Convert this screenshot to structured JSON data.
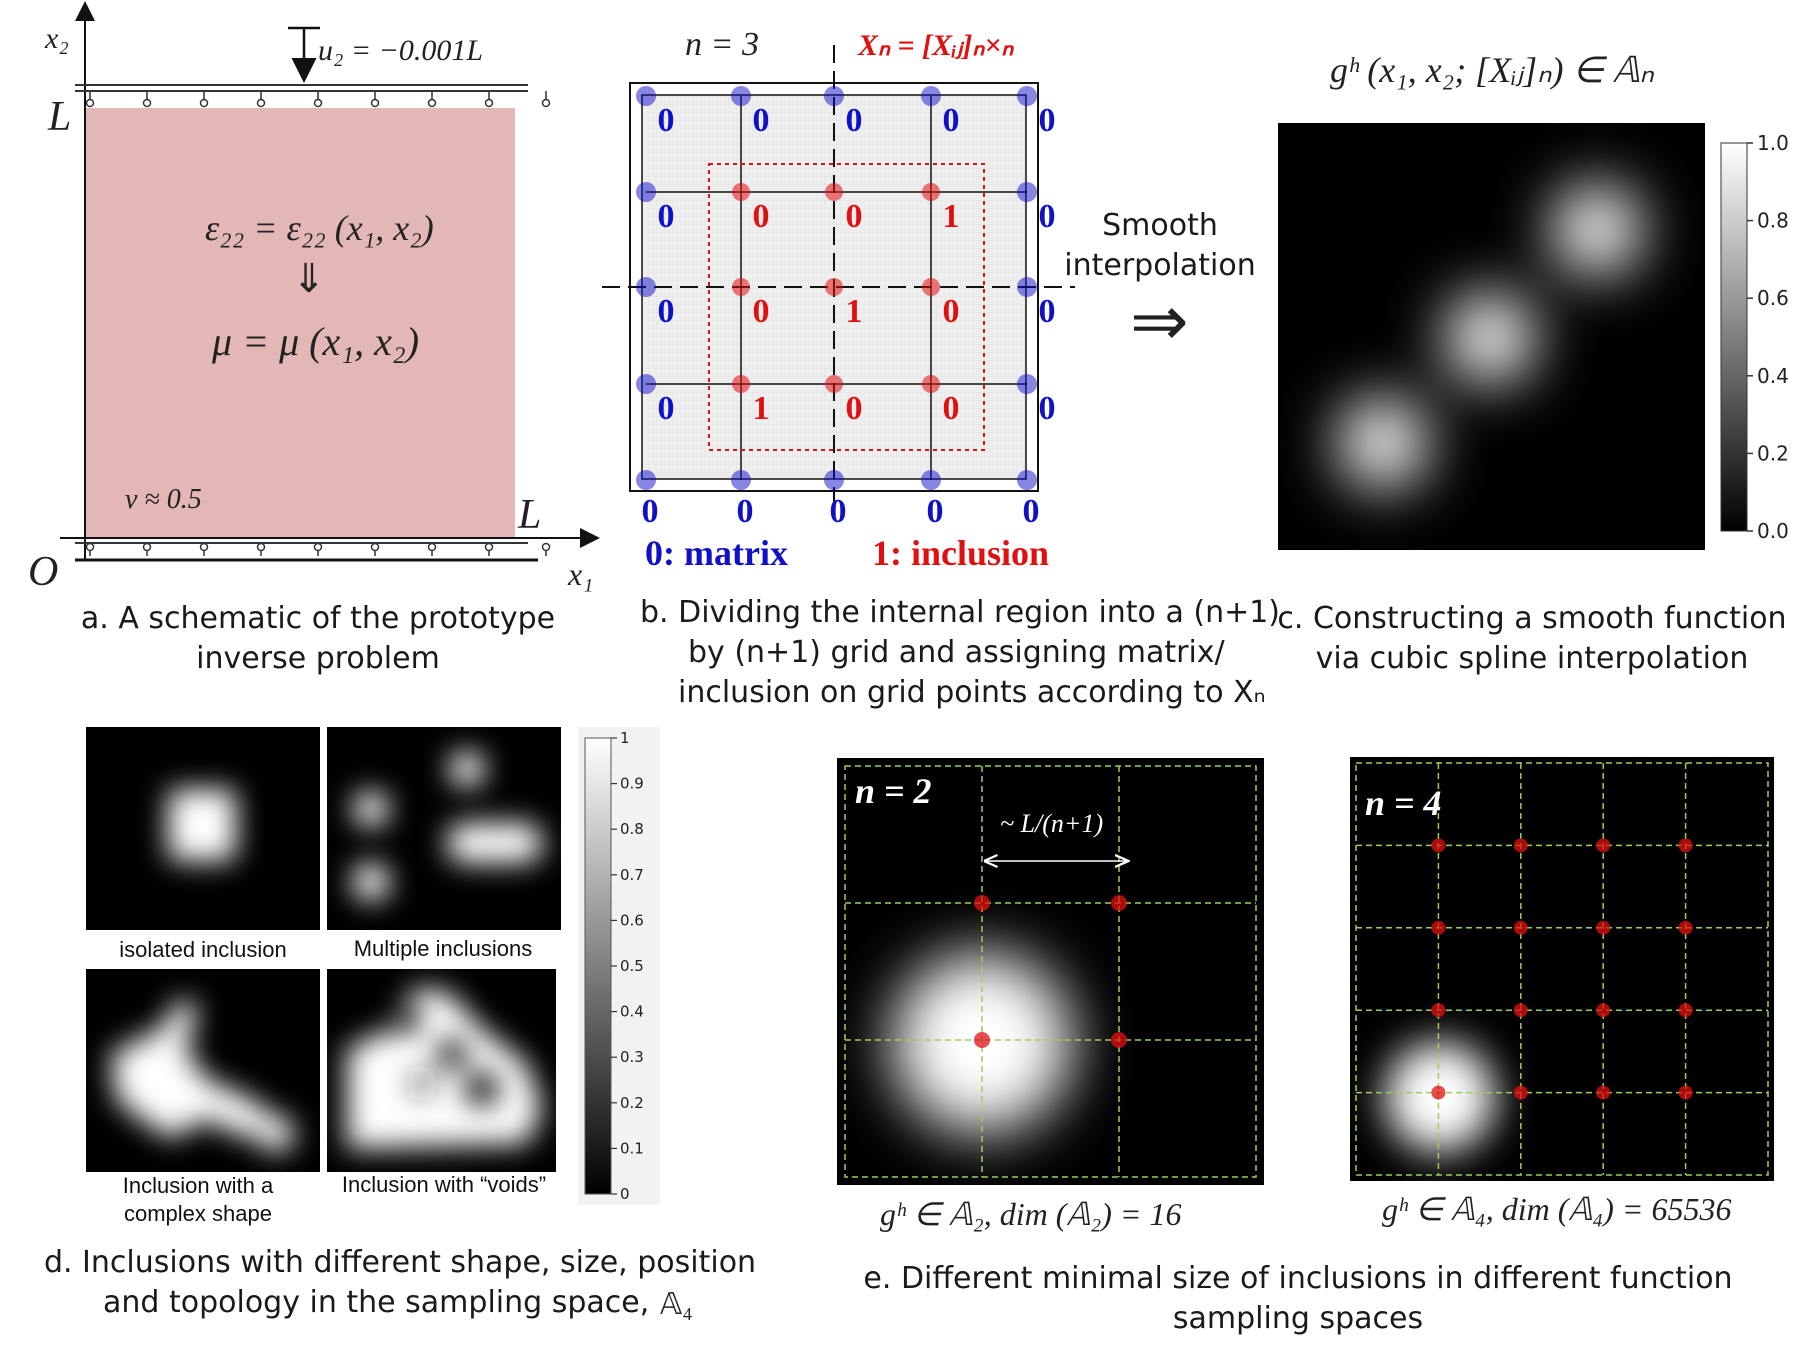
{
  "panel_a": {
    "load_label": "u₂ = −0.001L",
    "axis_x2": "x₂",
    "axis_x1": "x₁",
    "L_top": "L",
    "L_right": "L",
    "origin": "O",
    "strain_eq": "ε₂₂ = ε₂₂ (x₁, x₂)",
    "implies": "⇓",
    "mu_eq": "μ = μ (x₁, x₂)",
    "nu": "ν ≈ 0.5",
    "caption_line1": "a. A schematic of the prototype",
    "caption_line2": "inverse problem"
  },
  "panel_b": {
    "n_label": "n = 3",
    "X_label": "Xₙ = [Xᵢⱼ]ₙ×ₙ",
    "grid_values": [
      [
        "0",
        "0",
        "0",
        "0",
        "0"
      ],
      [
        "0",
        "0",
        "0",
        "1",
        "0"
      ],
      [
        "0",
        "0",
        "1",
        "0",
        "0"
      ],
      [
        "0",
        "1",
        "0",
        "0",
        "0"
      ],
      [
        "0",
        "0",
        "0",
        "0",
        "0"
      ]
    ],
    "legend_matrix": "0: matrix",
    "legend_inclusion": "1: inclusion",
    "caption_line1": "b. Dividing the internal region into a (n+1)",
    "caption_line2": "by (n+1) grid and assigning matrix/",
    "caption_line3": "inclusion on grid points according to Xₙ"
  },
  "arrow": {
    "label_line1": "Smooth",
    "label_line2": "interpolation",
    "symbol": "⇒"
  },
  "panel_c": {
    "title": "gʰ (x₁, x₂; [Xᵢⱼ]ₙ) ∈ 𝔸ₙ",
    "colorbar_ticks": [
      "1.0",
      "0.8",
      "0.6",
      "0.4",
      "0.2",
      "0.0"
    ],
    "caption_line1": "c. Constructing a smooth function",
    "caption_line2": "via cubic spline interpolation"
  },
  "panel_d": {
    "labels": [
      "isolated inclusion",
      "Multiple inclusions",
      "Inclusion with a",
      "complex shape",
      "Inclusion with “voids”"
    ],
    "colorbar_ticks": [
      "1",
      "0.9",
      "0.8",
      "0.7",
      "0.6",
      "0.5",
      "0.4",
      "0.3",
      "0.2",
      "0.1",
      "0"
    ],
    "caption_line1": "d. Inclusions with different shape, size, position",
    "caption_line2": "and topology in the sampling space,",
    "caption_space": "𝔸₄"
  },
  "panel_e": {
    "left_n": "n = 2",
    "spacing_label": "~ L/(n+1)",
    "left_formula": "gʰ ∈ 𝔸₂, dim (𝔸₂) = 16",
    "right_n": "n = 4",
    "right_formula": "gʰ ∈ 𝔸₄, dim (𝔸₄) = 65536",
    "caption_line1": "e. Different minimal size of inclusions in different function",
    "caption_line2": "sampling spaces"
  },
  "colors": {
    "matrix_blue": "#1010c8",
    "inclusion_red": "#e01010",
    "domain_fill": "#e3b7b6"
  }
}
